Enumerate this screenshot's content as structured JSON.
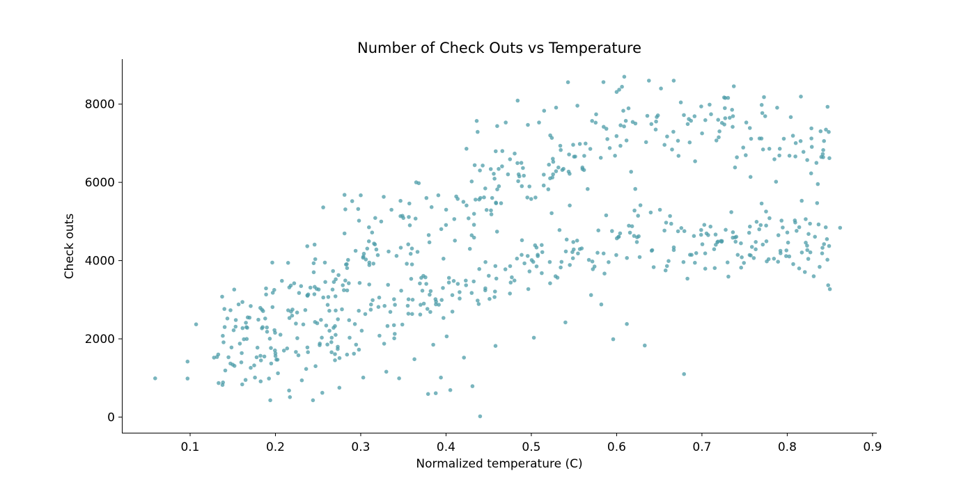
{
  "chart_data": {
    "type": "scatter",
    "title": "Number of Check Outs vs Temperature",
    "xlabel": "Normalized temperature (C)",
    "ylabel": "Check outs",
    "xlim": [
      0.02,
      0.905
    ],
    "ylim": [
      -400,
      9150
    ],
    "xticks": [
      0.1,
      0.2,
      0.3,
      0.4,
      0.5,
      0.6,
      0.7,
      0.8,
      0.9
    ],
    "yticks": [
      0,
      2000,
      4000,
      6000,
      8000
    ],
    "grid": false,
    "color": "#4c9ca8",
    "seed": 20240611,
    "point_count": 731,
    "series": [
      {
        "name": "Check outs",
        "points": [
          [
            0.059,
            990
          ],
          [
            0.097,
            985
          ],
          [
            0.097,
            1420
          ],
          [
            0.107,
            2370
          ],
          [
            0.128,
            1520
          ],
          [
            0.133,
            1600
          ],
          [
            0.138,
            822
          ],
          [
            0.145,
            1530
          ],
          [
            0.15,
            1340
          ],
          [
            0.151,
            2220
          ],
          [
            0.16,
            1400
          ],
          [
            0.163,
            1990
          ],
          [
            0.165,
            950
          ],
          [
            0.166,
            2300
          ],
          [
            0.171,
            1260
          ],
          [
            0.176,
            1010
          ],
          [
            0.178,
            1530
          ],
          [
            0.18,
            2490
          ],
          [
            0.183,
            1450
          ],
          [
            0.187,
            1550
          ],
          [
            0.189,
            3290
          ],
          [
            0.19,
            2290
          ],
          [
            0.194,
            430
          ],
          [
            0.195,
            1370
          ],
          [
            0.2,
            1630
          ],
          [
            0.203,
            1120
          ],
          [
            0.21,
            1700
          ],
          [
            0.215,
            2730
          ],
          [
            0.216,
            680
          ],
          [
            0.217,
            510
          ],
          [
            0.22,
            2750
          ],
          [
            0.222,
            3420
          ],
          [
            0.224,
            2390
          ],
          [
            0.227,
            1580
          ],
          [
            0.231,
            940
          ],
          [
            0.236,
            1230
          ],
          [
            0.241,
            3310
          ],
          [
            0.244,
            430
          ],
          [
            0.246,
            3330
          ],
          [
            0.249,
            2400
          ],
          [
            0.252,
            1880
          ],
          [
            0.255,
            620
          ],
          [
            0.256,
            5360
          ],
          [
            0.258,
            3950
          ],
          [
            0.262,
            3070
          ],
          [
            0.266,
            2030
          ],
          [
            0.267,
            3260
          ],
          [
            0.273,
            1740
          ],
          [
            0.274,
            3630
          ],
          [
            0.275,
            750
          ],
          [
            0.279,
            3370
          ],
          [
            0.281,
            5680
          ],
          [
            0.282,
            5310
          ],
          [
            0.284,
            3810
          ],
          [
            0.287,
            2030
          ],
          [
            0.29,
            5520
          ],
          [
            0.292,
            1620
          ],
          [
            0.294,
            4250
          ],
          [
            0.297,
            5320
          ],
          [
            0.298,
            5020
          ],
          [
            0.3,
            5670
          ],
          [
            0.303,
            1010
          ],
          [
            0.306,
            4030
          ],
          [
            0.31,
            3390
          ],
          [
            0.314,
            2990
          ],
          [
            0.317,
            5090
          ],
          [
            0.32,
            4140
          ],
          [
            0.322,
            2080
          ],
          [
            0.324,
            5000
          ],
          [
            0.327,
            5630
          ],
          [
            0.33,
            1160
          ],
          [
            0.332,
            3380
          ],
          [
            0.336,
            5300
          ],
          [
            0.339,
            2350
          ],
          [
            0.342,
            4120
          ],
          [
            0.345,
            990
          ],
          [
            0.347,
            4330
          ],
          [
            0.35,
            5090
          ],
          [
            0.354,
            3920
          ],
          [
            0.357,
            5460
          ],
          [
            0.36,
            4310
          ],
          [
            0.363,
            1480
          ],
          [
            0.365,
            6000
          ],
          [
            0.368,
            5980
          ],
          [
            0.371,
            3560
          ],
          [
            0.374,
            2900
          ],
          [
            0.377,
            5600
          ],
          [
            0.379,
            590
          ],
          [
            0.382,
            3220
          ],
          [
            0.385,
            1850
          ],
          [
            0.388,
            610
          ],
          [
            0.391,
            5670
          ],
          [
            0.394,
            1010
          ],
          [
            0.397,
            4050
          ],
          [
            0.4,
            4910
          ],
          [
            0.405,
            690
          ],
          [
            0.409,
            3480
          ],
          [
            0.412,
            5640
          ],
          [
            0.416,
            3030
          ],
          [
            0.421,
            1520
          ],
          [
            0.424,
            6860
          ],
          [
            0.428,
            4300
          ],
          [
            0.431,
            790
          ],
          [
            0.436,
            7570
          ],
          [
            0.437,
            7290
          ],
          [
            0.44,
            20
          ],
          [
            0.443,
            6430
          ],
          [
            0.446,
            3240
          ],
          [
            0.451,
            3020
          ],
          [
            0.456,
            6220
          ],
          [
            0.458,
            1820
          ],
          [
            0.46,
            7440
          ],
          [
            0.466,
            6800
          ],
          [
            0.47,
            7530
          ],
          [
            0.475,
            6590
          ],
          [
            0.484,
            8090
          ],
          [
            0.489,
            4520
          ],
          [
            0.496,
            7470
          ],
          [
            0.503,
            2030
          ],
          [
            0.509,
            7530
          ],
          [
            0.515,
            7830
          ],
          [
            0.522,
            3420
          ],
          [
            0.529,
            7910
          ],
          [
            0.533,
            4780
          ],
          [
            0.54,
            2420
          ],
          [
            0.543,
            8560
          ],
          [
            0.545,
            5410
          ],
          [
            0.549,
            6960
          ],
          [
            0.554,
            7960
          ],
          [
            0.56,
            6340
          ],
          [
            0.566,
            5830
          ],
          [
            0.57,
            3120
          ],
          [
            0.576,
            7740
          ],
          [
            0.582,
            2880
          ],
          [
            0.588,
            7370
          ],
          [
            0.596,
            1990
          ],
          [
            0.6,
            8310
          ],
          [
            0.603,
            8370
          ],
          [
            0.609,
            8700
          ],
          [
            0.612,
            2380
          ],
          [
            0.617,
            6270
          ],
          [
            0.621,
            5280
          ],
          [
            0.627,
            4090
          ],
          [
            0.633,
            1830
          ],
          [
            0.636,
            7700
          ],
          [
            0.64,
            5230
          ],
          [
            0.647,
            7670
          ],
          [
            0.652,
            8400
          ],
          [
            0.658,
            4970
          ],
          [
            0.665,
            6840
          ],
          [
            0.672,
            4750
          ],
          [
            0.679,
            1100
          ],
          [
            0.683,
            3540
          ],
          [
            0.686,
            4150
          ],
          [
            0.692,
            6540
          ],
          [
            0.699,
            4660
          ],
          [
            0.704,
            7590
          ],
          [
            0.71,
            4870
          ],
          [
            0.715,
            3810
          ],
          [
            0.719,
            7600
          ],
          [
            0.726,
            8170
          ],
          [
            0.731,
            3590
          ],
          [
            0.736,
            7420
          ],
          [
            0.741,
            6640
          ],
          [
            0.746,
            3820
          ],
          [
            0.752,
            7530
          ],
          [
            0.757,
            6140
          ],
          [
            0.763,
            4290
          ],
          [
            0.77,
            5460
          ],
          [
            0.776,
            3980
          ],
          [
            0.779,
            6860
          ],
          [
            0.785,
            6590
          ],
          [
            0.792,
            4250
          ],
          [
            0.801,
            4460
          ],
          [
            0.807,
            3910
          ],
          [
            0.814,
            3800
          ],
          [
            0.817,
            5530
          ],
          [
            0.819,
            6780
          ],
          [
            0.825,
            4680
          ],
          [
            0.828,
            6230
          ],
          [
            0.831,
            3600
          ],
          [
            0.835,
            5470
          ],
          [
            0.838,
            3840
          ],
          [
            0.848,
            3370
          ],
          [
            0.85,
            3270
          ],
          [
            0.862,
            4840
          ]
        ]
      }
    ]
  }
}
